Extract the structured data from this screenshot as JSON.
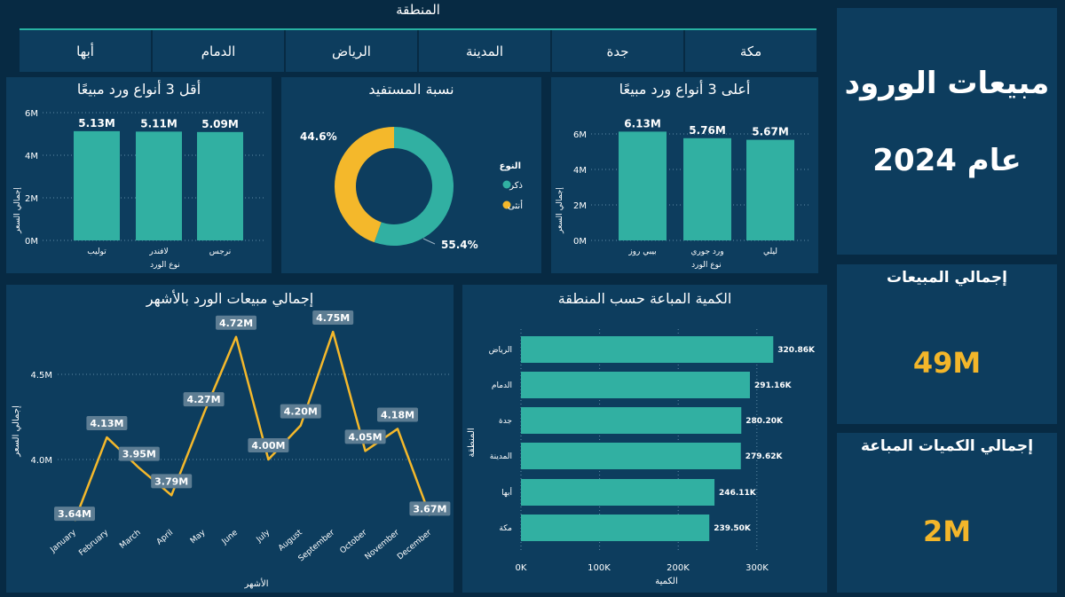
{
  "colors": {
    "bg": "#072a43",
    "panel": "#0d3d5e",
    "teal": "#31b0a2",
    "yellow": "#f4b82b",
    "label_bg": "#5d7d93"
  },
  "region_slicer": {
    "title": "المنطقة",
    "options": [
      "أبها",
      "الدمام",
      "الرياض",
      "المدينة",
      "جدة",
      "مكة"
    ]
  },
  "header": {
    "title_line1": "مبيعات الورود",
    "title_line2": "عام 2024"
  },
  "kpis": {
    "total_sales_label": "إجمالي المبيعات",
    "total_sales_value": "49M",
    "total_qty_label": "إجمالي الكميات المباعة",
    "total_qty_value": "2M"
  },
  "donut": {
    "title": "نسبة المستفيد",
    "legend_title": "النوع",
    "legend": [
      {
        "name": "ذكر",
        "color": "#31b0a2"
      },
      {
        "name": "أنثى",
        "color": "#f4b82b"
      }
    ],
    "values": [
      55.4,
      44.6
    ],
    "labels": [
      "55.4%",
      "44.6%"
    ]
  },
  "bottom3": {
    "title": "أقل 3 أنواع ورد مبيعًا",
    "ylabel": "إجمالي السعر",
    "xlabel": "نوع الورد",
    "yticks": [
      "6M",
      "4M",
      "2M",
      "0M"
    ]
  },
  "top3": {
    "title": "أعلى 3 أنواع ورد مبيعًا",
    "ylabel": "إجمالي السعر",
    "xlabel": "نوع الورد",
    "yticks": [
      "6M",
      "4M",
      "2M",
      "0M"
    ]
  },
  "monthly": {
    "title": "إجمالي مبيعات الورد بالأشهر",
    "ylabel": "إجمالي السعر",
    "xlabel": "الأشهر",
    "yticks": [
      "4.5M",
      "4.0M"
    ]
  },
  "region_qty": {
    "title": "الكمية المباعة حسب المنطقة",
    "ylabel": "المنطقة",
    "xlabel": "الكمية",
    "xticks": [
      "0K",
      "100K",
      "200K",
      "300K"
    ]
  },
  "chart_data": [
    {
      "type": "bar",
      "title": "أقل 3 أنواع ورد مبيعًا",
      "categories": [
        "توليب",
        "لافندر",
        "نرجس"
      ],
      "values": [
        5.13,
        5.11,
        5.09
      ],
      "data_labels": [
        "5.13M",
        "5.11M",
        "5.09M"
      ],
      "ylim": [
        0,
        6.5
      ],
      "xlabel": "نوع الورد",
      "ylabel": "إجمالي السعر"
    },
    {
      "type": "bar",
      "title": "أعلى 3 أنواع ورد مبيعًا",
      "categories": [
        "بيبي روز",
        "ورد جوري",
        "ليلي"
      ],
      "values": [
        6.13,
        5.76,
        5.67
      ],
      "data_labels": [
        "6.13M",
        "5.76M",
        "5.67M"
      ],
      "ylim": [
        0,
        6.5
      ],
      "xlabel": "نوع الورد",
      "ylabel": "إجمالي السعر"
    },
    {
      "type": "pie",
      "title": "نسبة المستفيد",
      "categories": [
        "ذكر",
        "أنثى"
      ],
      "values": [
        55.4,
        44.6
      ]
    },
    {
      "type": "line",
      "title": "إجمالي مبيعات الورد بالأشهر",
      "categories": [
        "January",
        "February",
        "March",
        "April",
        "May",
        "June",
        "July",
        "August",
        "September",
        "October",
        "November",
        "December"
      ],
      "values": [
        3.64,
        4.13,
        3.95,
        3.79,
        4.27,
        4.72,
        4.0,
        4.2,
        4.75,
        4.05,
        4.18,
        3.67
      ],
      "data_labels": [
        "3.64M",
        "4.13M",
        "3.95M",
        "3.79M",
        "4.27M",
        "4.72M",
        "4.00M",
        "4.20M",
        "4.75M",
        "4.05M",
        "4.18M",
        "3.67M"
      ],
      "ylim": [
        3.6,
        4.8
      ],
      "xlabel": "الأشهر",
      "ylabel": "إجمالي السعر"
    },
    {
      "type": "bar",
      "orientation": "horizontal",
      "title": "الكمية المباعة حسب المنطقة",
      "categories": [
        "الرياض",
        "الدمام",
        "جدة",
        "المدينة",
        "أبها",
        "مكة"
      ],
      "values": [
        320.86,
        291.16,
        280.2,
        279.62,
        246.11,
        239.5
      ],
      "data_labels": [
        "320.86K",
        "291.16K",
        "280.20K",
        "279.62K",
        "246.11K",
        "239.50K"
      ],
      "xlim": [
        0,
        330
      ],
      "xlabel": "الكمية",
      "ylabel": "المنطقة"
    }
  ]
}
